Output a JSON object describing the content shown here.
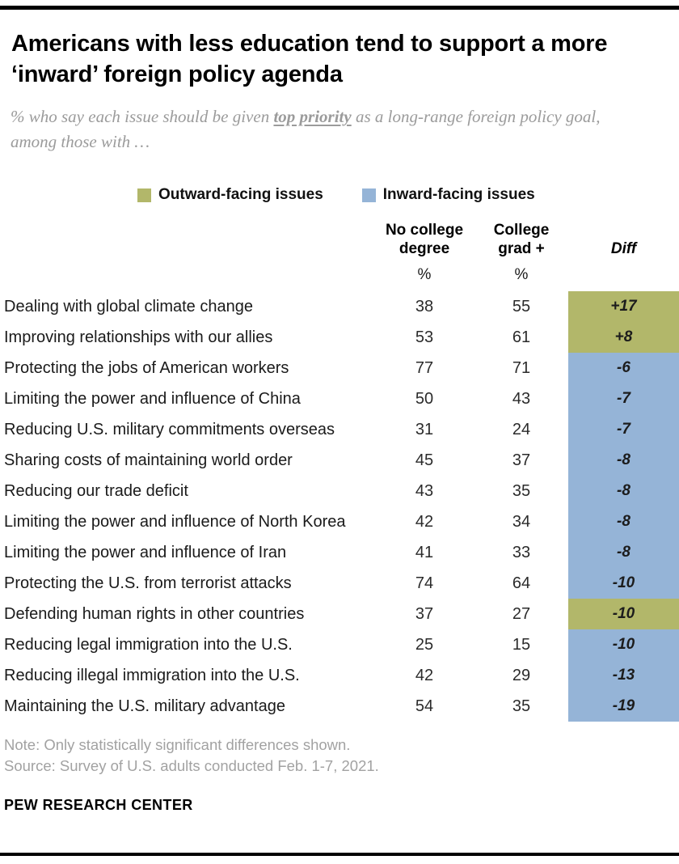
{
  "header": {
    "title": "Americans with less education tend to support a more ‘inward’ foreign policy agenda",
    "subtitle": {
      "prefix": "% who say each issue should be given ",
      "emphasis": "top priority",
      "suffix": " as a long-range foreign policy goal, among those with …"
    }
  },
  "legend": {
    "outward": {
      "label": "Outward-facing issues",
      "color": "#b2b76a"
    },
    "inward": {
      "label": "Inward-facing issues",
      "color": "#95b4d7"
    }
  },
  "chart_data": {
    "type": "table",
    "title": "Americans with less education tend to support a more ‘inward’ foreign policy agenda",
    "columns": {
      "group1": "No college degree",
      "group2": "College grad +",
      "diff": "Diff",
      "unit": "%"
    },
    "rows": [
      {
        "label": "Dealing with global climate change",
        "no_college_degree": 38,
        "college_grad": 55,
        "diff": "+17",
        "category": "outward"
      },
      {
        "label": "Improving relationships with our allies",
        "no_college_degree": 53,
        "college_grad": 61,
        "diff": "+8",
        "category": "outward"
      },
      {
        "label": "Protecting the jobs of American workers",
        "no_college_degree": 77,
        "college_grad": 71,
        "diff": "-6",
        "category": "inward"
      },
      {
        "label": "Limiting the power and influence of China",
        "no_college_degree": 50,
        "college_grad": 43,
        "diff": "-7",
        "category": "inward"
      },
      {
        "label": "Reducing U.S. military commitments overseas",
        "no_college_degree": 31,
        "college_grad": 24,
        "diff": "-7",
        "category": "inward"
      },
      {
        "label": "Sharing costs of maintaining world order",
        "no_college_degree": 45,
        "college_grad": 37,
        "diff": "-8",
        "category": "inward"
      },
      {
        "label": "Reducing our trade deficit",
        "no_college_degree": 43,
        "college_grad": 35,
        "diff": "-8",
        "category": "inward"
      },
      {
        "label": "Limiting the power and influence of North Korea",
        "no_college_degree": 42,
        "college_grad": 34,
        "diff": "-8",
        "category": "inward"
      },
      {
        "label": "Limiting the power and influence of Iran",
        "no_college_degree": 41,
        "college_grad": 33,
        "diff": "-8",
        "category": "inward"
      },
      {
        "label": "Protecting the U.S. from terrorist attacks",
        "no_college_degree": 74,
        "college_grad": 64,
        "diff": "-10",
        "category": "inward"
      },
      {
        "label": "Defending human rights in other countries",
        "no_college_degree": 37,
        "college_grad": 27,
        "diff": "-10",
        "category": "outward"
      },
      {
        "label": "Reducing legal immigration into the U.S.",
        "no_college_degree": 25,
        "college_grad": 15,
        "diff": "-10",
        "category": "inward"
      },
      {
        "label": "Reducing illegal immigration into the U.S.",
        "no_college_degree": 42,
        "college_grad": 29,
        "diff": "-13",
        "category": "inward"
      },
      {
        "label": "Maintaining the U.S. military advantage",
        "no_college_degree": 54,
        "college_grad": 35,
        "diff": "-19",
        "category": "inward"
      }
    ]
  },
  "footer": {
    "note": "Note: Only statistically significant differences shown.",
    "source": "Source: Survey of U.S. adults conducted Feb. 1-7, 2021.",
    "brand": "PEW RESEARCH CENTER"
  }
}
